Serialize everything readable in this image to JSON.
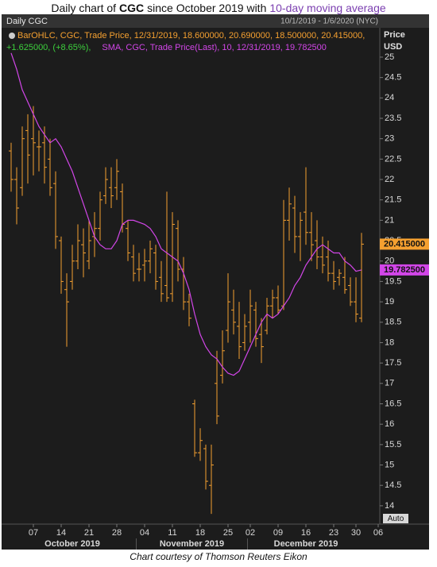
{
  "title_parts": [
    "Daily chart of",
    "CGC",
    "since October 2019 with",
    "10-day moving average"
  ],
  "caption": "Chart courtesy of Thomson Reuters Eikon",
  "chart_data": {
    "type": "ohlc",
    "header": "Daily CGC",
    "date_range": "10/1/2019 - 1/6/2020 (NYC)",
    "y_axis_label": [
      "Price",
      "USD"
    ],
    "auto_button": "Auto",
    "months": [
      "October 2019",
      "November 2019",
      "December 2019"
    ],
    "categories": [
      null,
      null,
      null,
      null,
      "07",
      null,
      null,
      null,
      null,
      "14",
      null,
      null,
      null,
      null,
      "21",
      null,
      null,
      null,
      null,
      "28",
      null,
      null,
      null,
      null,
      "04",
      null,
      null,
      null,
      null,
      "11",
      null,
      null,
      null,
      null,
      "18",
      null,
      null,
      null,
      null,
      "25",
      null,
      null,
      null,
      "02",
      null,
      null,
      null,
      null,
      "09",
      null,
      null,
      null,
      null,
      "16",
      null,
      null,
      null,
      null,
      "23",
      null,
      null,
      null,
      "30",
      null,
      null,
      null,
      "06"
    ],
    "ylim": [
      13.55,
      25.7
    ],
    "yticks": [
      14,
      14.5,
      15,
      15.5,
      16,
      16.5,
      17,
      17.5,
      18,
      18.5,
      19,
      19.5,
      20,
      20.5,
      21,
      21.5,
      22,
      22.5,
      23,
      23.5,
      24,
      24.5,
      25
    ],
    "series": [
      {
        "name": "BarOHLC, CGC, Trade Price, 12/31/2019, 18.600000, 20.690000, 18.500000, 20.415000,",
        "change": "+1.625000, (+8.65%),",
        "color": "#f5a030",
        "change_color": "#3ccf3c",
        "close_label": "20.415000",
        "open": [
          22.7,
          22.0,
          21.8,
          23.2,
          23.0,
          22.8,
          22.9,
          22.5,
          21.9,
          20.5,
          19.3,
          19.5,
          20.0,
          20.4,
          20.0,
          20.6,
          20.8,
          21.6,
          21.8,
          21.8,
          21.7,
          20.8,
          20.1,
          19.8,
          19.9,
          20.0,
          20.2,
          19.6,
          19.4,
          19.2,
          20.8,
          19.8,
          19.0,
          16.5,
          15.3,
          15.4,
          14.5,
          17.0,
          17.2,
          18.3,
          18.8,
          18.4,
          18.0,
          18.5,
          18.8,
          18.2,
          18.3,
          18.9,
          19.1,
          18.9,
          21.0,
          21.3,
          20.6,
          21.2,
          20.7,
          20.5,
          20.1,
          20.1,
          19.7,
          19.6,
          19.6,
          19.4,
          19.0,
          18.6,
          null,
          null,
          null
        ],
        "high": [
          22.9,
          22.3,
          23.3,
          23.6,
          23.8,
          23.2,
          23.3,
          23.0,
          22.2,
          20.6,
          19.7,
          20.4,
          20.9,
          20.8,
          21.0,
          21.2,
          21.7,
          22.3,
          22.3,
          22.5,
          21.9,
          21.0,
          20.4,
          20.2,
          20.3,
          20.5,
          20.4,
          20.0,
          21.7,
          21.2,
          21.0,
          20.1,
          19.2,
          16.6,
          15.9,
          15.5,
          15.5,
          17.8,
          18.3,
          19.7,
          19.3,
          19.0,
          18.7,
          19.3,
          19.0,
          18.6,
          19.1,
          19.3,
          19.4,
          21.5,
          21.8,
          21.6,
          21.2,
          22.3,
          21.2,
          21.0,
          20.6,
          20.5,
          20.0,
          19.8,
          20.1,
          19.6,
          19.6,
          20.69,
          null,
          null,
          null
        ],
        "low": [
          21.7,
          20.9,
          21.6,
          21.9,
          22.1,
          22.2,
          21.9,
          21.6,
          20.3,
          19.2,
          17.9,
          19.3,
          19.8,
          19.6,
          19.8,
          20.1,
          20.5,
          21.4,
          21.3,
          21.5,
          20.7,
          20.0,
          19.5,
          19.5,
          19.5,
          19.7,
          19.3,
          19.0,
          19.0,
          19.0,
          19.5,
          18.8,
          18.4,
          15.2,
          15.1,
          14.4,
          13.8,
          16.0,
          17.0,
          18.0,
          18.2,
          17.6,
          17.8,
          18.0,
          17.9,
          17.5,
          18.2,
          18.6,
          18.7,
          18.8,
          20.5,
          20.2,
          20.0,
          20.4,
          20.0,
          19.8,
          19.7,
          19.5,
          19.3,
          19.4,
          19.2,
          18.9,
          18.5,
          18.5,
          null,
          null,
          null
        ],
        "close": [
          22.0,
          21.3,
          23.0,
          22.6,
          22.9,
          22.8,
          22.3,
          21.8,
          20.6,
          19.5,
          19.0,
          20.0,
          20.5,
          20.2,
          20.5,
          20.8,
          21.5,
          22.0,
          21.6,
          22.2,
          20.9,
          20.2,
          19.7,
          19.8,
          20.0,
          20.3,
          19.5,
          19.2,
          19.1,
          20.9,
          19.8,
          19.0,
          18.6,
          15.3,
          15.6,
          14.6,
          15.0,
          16.2,
          17.8,
          19.0,
          18.5,
          17.9,
          18.4,
          18.9,
          18.1,
          17.9,
          18.9,
          19.1,
          18.8,
          21.0,
          21.4,
          20.6,
          21.0,
          20.7,
          20.4,
          20.1,
          19.9,
          19.7,
          19.5,
          19.7,
          19.3,
          19.0,
          18.7,
          20.415,
          null,
          null,
          null
        ]
      },
      {
        "name": "SMA, CGC, Trade Price(Last), 10, 12/31/2019, 19.782500",
        "color": "#d246e8",
        "close_label": "19.782500",
        "values": [
          25.1,
          24.7,
          24.2,
          23.9,
          23.6,
          23.3,
          23.1,
          22.9,
          23.0,
          22.8,
          22.5,
          22.2,
          21.8,
          21.4,
          21.0,
          20.6,
          20.4,
          20.3,
          20.3,
          20.5,
          20.9,
          21.0,
          21.0,
          20.95,
          20.9,
          20.8,
          20.6,
          20.3,
          20.2,
          20.1,
          20.0,
          19.7,
          19.3,
          18.7,
          18.2,
          17.9,
          17.7,
          17.6,
          17.4,
          17.25,
          17.2,
          17.3,
          17.6,
          17.9,
          18.2,
          18.5,
          18.7,
          18.6,
          18.7,
          18.9,
          19.1,
          19.4,
          19.6,
          19.9,
          20.1,
          20.3,
          20.4,
          20.3,
          20.2,
          20.2,
          20.0,
          19.9,
          19.75,
          19.7825,
          null,
          null,
          null
        ]
      }
    ]
  }
}
